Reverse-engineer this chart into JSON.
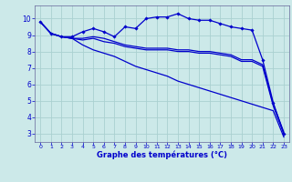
{
  "xlabel": "Graphe des températures (°C)",
  "background_color": "#cce9e9",
  "grid_color": "#aad0d0",
  "line_color": "#0000cc",
  "xlim": [
    -0.5,
    23.5
  ],
  "ylim": [
    2.5,
    10.8
  ],
  "yticks": [
    3,
    4,
    5,
    6,
    7,
    8,
    9,
    10
  ],
  "xticks": [
    0,
    1,
    2,
    3,
    4,
    5,
    6,
    7,
    8,
    9,
    10,
    11,
    12,
    13,
    14,
    15,
    16,
    17,
    18,
    19,
    20,
    21,
    22,
    23
  ],
  "series": {
    "line_upper_x": [
      0,
      1,
      2,
      3,
      4,
      5,
      6,
      7,
      8,
      9,
      10,
      11,
      12,
      13,
      14,
      15,
      16,
      17,
      18,
      19,
      20,
      21,
      22,
      23
    ],
    "line_upper_y": [
      9.8,
      9.1,
      8.9,
      8.9,
      9.2,
      9.4,
      9.2,
      8.9,
      9.5,
      9.4,
      10.0,
      10.1,
      10.1,
      10.3,
      10.0,
      9.9,
      9.9,
      9.7,
      9.5,
      9.4,
      9.3,
      7.5,
      4.9,
      3.0
    ],
    "line_mid1_x": [
      0,
      1,
      2,
      3,
      4,
      5,
      6,
      7,
      8,
      9,
      10,
      11,
      12,
      13,
      14,
      15,
      16,
      17,
      18,
      19,
      20,
      21,
      22,
      23
    ],
    "line_mid1_y": [
      9.8,
      9.1,
      8.9,
      8.8,
      8.8,
      8.9,
      8.8,
      8.6,
      8.4,
      8.3,
      8.2,
      8.2,
      8.2,
      8.1,
      8.1,
      8.0,
      8.0,
      7.9,
      7.8,
      7.5,
      7.5,
      7.2,
      4.8,
      3.1
    ],
    "line_mid2_x": [
      0,
      1,
      2,
      3,
      4,
      5,
      6,
      7,
      8,
      9,
      10,
      11,
      12,
      13,
      14,
      15,
      16,
      17,
      18,
      19,
      20,
      21,
      22,
      23
    ],
    "line_mid2_y": [
      9.8,
      9.1,
      8.9,
      8.8,
      8.7,
      8.8,
      8.6,
      8.5,
      8.3,
      8.2,
      8.1,
      8.1,
      8.1,
      8.0,
      8.0,
      7.9,
      7.9,
      7.8,
      7.7,
      7.4,
      7.4,
      7.1,
      4.7,
      3.0
    ],
    "line_diag_x": [
      0,
      1,
      2,
      3,
      4,
      5,
      6,
      7,
      8,
      9,
      10,
      11,
      12,
      13,
      14,
      15,
      16,
      17,
      18,
      19,
      20,
      21,
      22,
      23
    ],
    "line_diag_y": [
      9.8,
      9.1,
      8.9,
      8.8,
      8.4,
      8.1,
      7.9,
      7.7,
      7.4,
      7.1,
      6.9,
      6.7,
      6.5,
      6.2,
      6.0,
      5.8,
      5.6,
      5.4,
      5.2,
      5.0,
      4.8,
      4.6,
      4.4,
      2.8
    ]
  }
}
